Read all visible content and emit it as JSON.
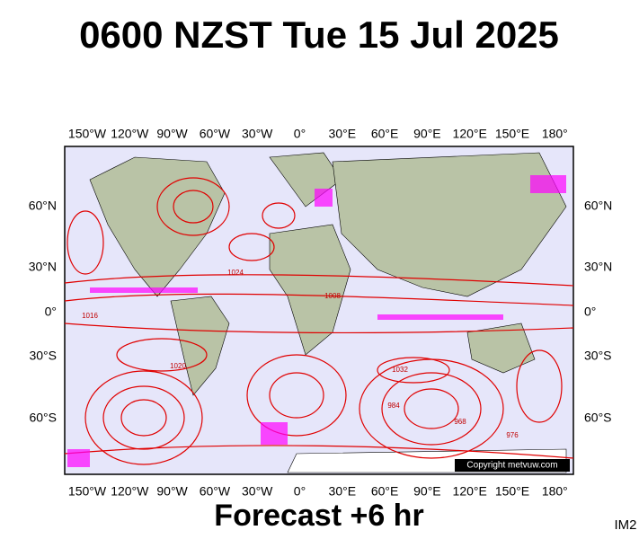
{
  "title": "0600 NZST Tue 15 Jul 2025",
  "map": {
    "lon_labels": [
      "150°W",
      "120°W",
      "90°W",
      "60°W",
      "30°W",
      "0°",
      "30°E",
      "60°E",
      "90°E",
      "120°E",
      "150°E",
      "180°"
    ],
    "lat_labels": [
      "60°N",
      "30°N",
      "0°",
      "30°S",
      "60°S"
    ],
    "contour_labels": [
      "1024",
      "1016",
      "1032",
      "968",
      "976",
      "984",
      "1008",
      "1020"
    ],
    "copyright": "Copyright metvuw.com"
  },
  "footer": {
    "forecast": "Forecast +6 hr",
    "code": "IM2"
  }
}
